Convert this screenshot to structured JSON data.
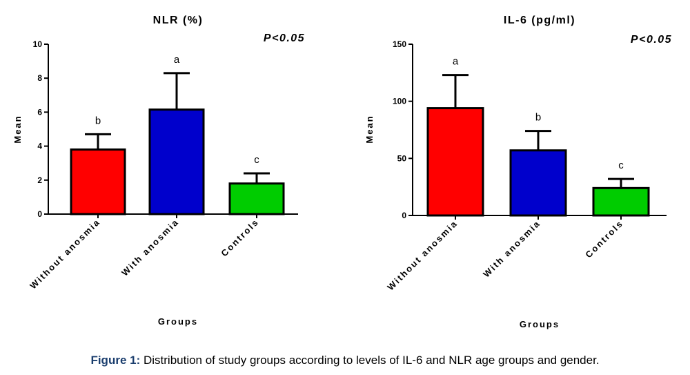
{
  "chart_data": [
    {
      "type": "bar",
      "title": "NLR (%)",
      "annotation": "P<0.05",
      "xlabel": "Groups",
      "ylabel": "Mean",
      "ylim": [
        0,
        10
      ],
      "yticks": [
        "0",
        "2",
        "4",
        "6",
        "8",
        "10"
      ],
      "categories": [
        "Without anosmia",
        "With anosmia",
        "Controls"
      ],
      "values": [
        3.8,
        6.15,
        1.8
      ],
      "error_upper": [
        4.7,
        8.3,
        2.4
      ],
      "letters": [
        "b",
        "a",
        "c"
      ],
      "colors": [
        "#ff0000",
        "#0000cc",
        "#00cc00"
      ]
    },
    {
      "type": "bar",
      "title": "IL-6 (pg/ml)",
      "annotation": "P<0.05",
      "xlabel": "Groups",
      "ylabel": "Mean",
      "ylim": [
        0,
        150
      ],
      "yticks": [
        "0",
        "50",
        "100",
        "150"
      ],
      "categories": [
        "Without anosmia",
        "With anosmia",
        "Controls"
      ],
      "values": [
        94,
        57,
        24
      ],
      "error_upper": [
        123,
        74,
        32
      ],
      "letters": [
        "a",
        "b",
        "c"
      ],
      "colors": [
        "#ff0000",
        "#0000cc",
        "#00cc00"
      ]
    }
  ],
  "caption": {
    "label": "Figure 1:",
    "text": " Distribution of study groups according to levels of IL-6 and NLR age groups and gender."
  }
}
